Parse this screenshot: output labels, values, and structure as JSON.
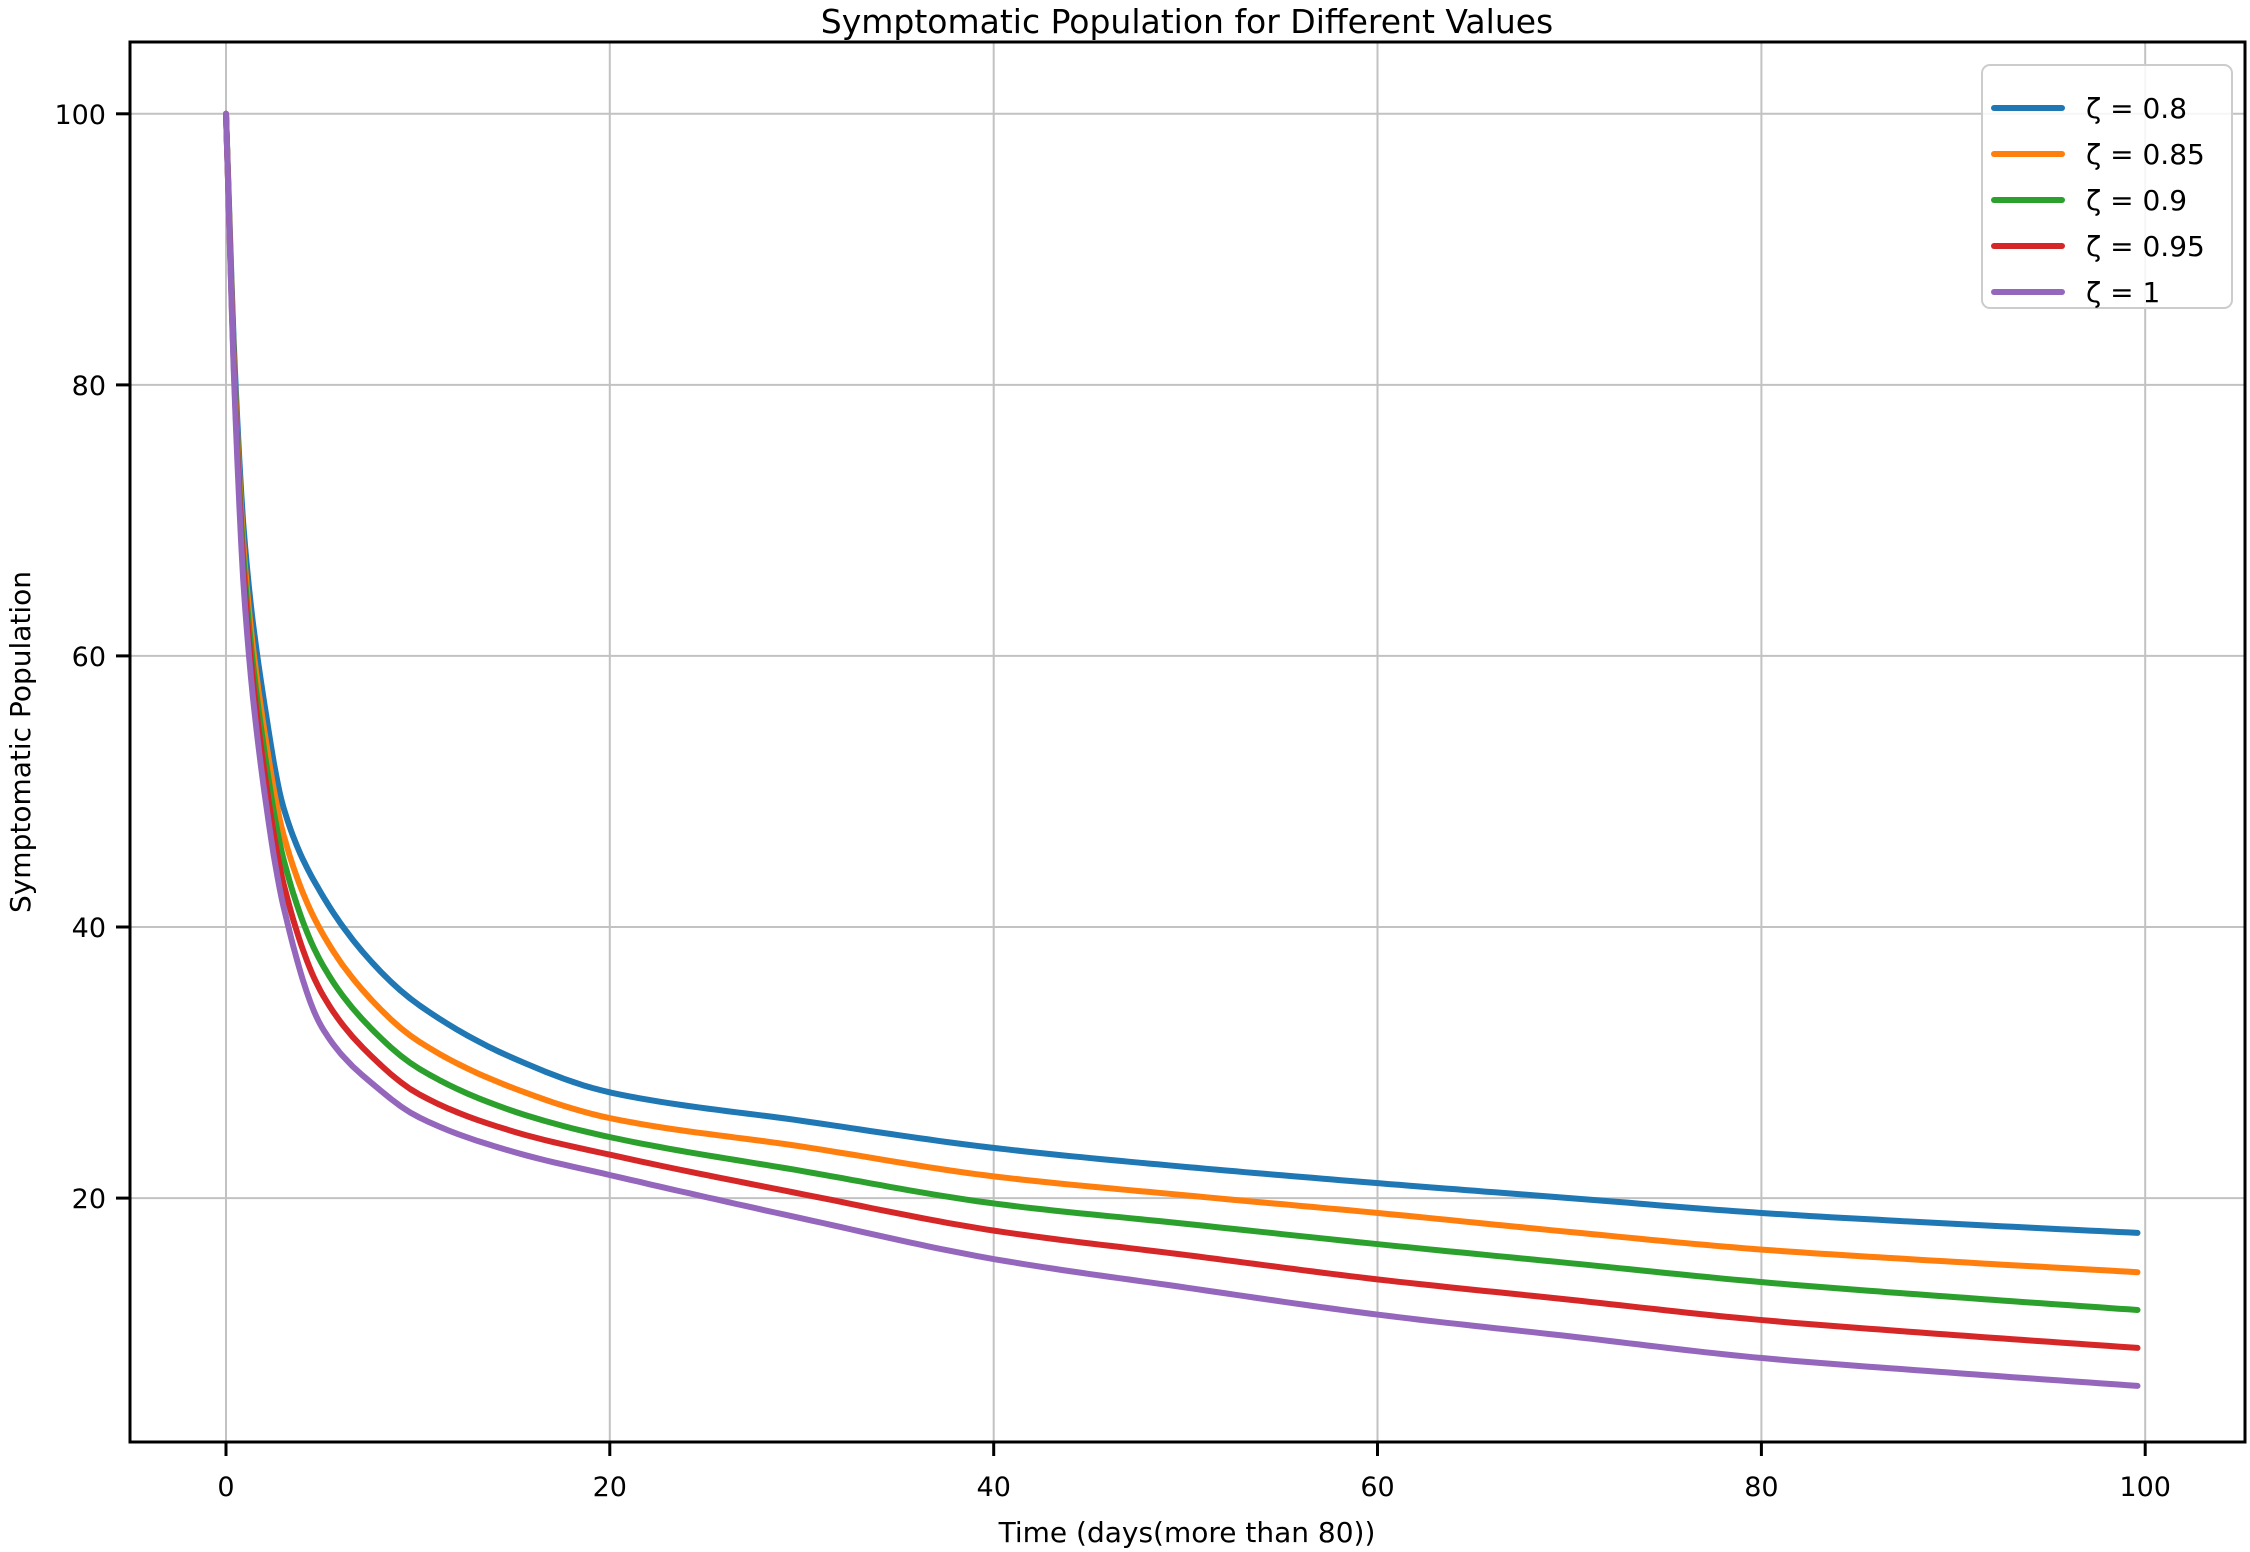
{
  "figure": {
    "background": "#ffffff",
    "grid_color": "#c2c2c2",
    "spine_color": "#000000",
    "legend_border_color": "#cccccc",
    "legend_background": "rgba(255,255,255,0.85)"
  },
  "chart_data": {
    "type": "line",
    "title": "Symptomatic Population for Different Values",
    "xlabel": "Time (days(more than 80))",
    "ylabel": "Symptomatic Population",
    "xlim": [
      -5,
      105.2
    ],
    "ylim": [
      2.0,
      105.3
    ],
    "xticks": [
      0,
      20,
      40,
      60,
      80,
      100
    ],
    "yticks": [
      20,
      40,
      60,
      80,
      100
    ],
    "grid": true,
    "legend_position": "upper right",
    "x": [
      0,
      0.5,
      1,
      2,
      3,
      5,
      8,
      10,
      15,
      20,
      30,
      40,
      50,
      60,
      70,
      80,
      90,
      100
    ],
    "series": [
      {
        "name": "ζ = 0.8",
        "color": "#1f77b4",
        "values": [
          100,
          80.0,
          68.0,
          56.5,
          48.8,
          42.4,
          36.8,
          34.3,
          30.3,
          27.8,
          25.7,
          23.7,
          22.3,
          21.1,
          20.0,
          18.9,
          18.1,
          17.4
        ]
      },
      {
        "name": "ζ = 0.85",
        "color": "#ff7f0e",
        "values": [
          100,
          79.0,
          66.5,
          54.5,
          46.8,
          39.6,
          34.0,
          31.6,
          28.1,
          25.9,
          23.8,
          21.6,
          20.2,
          18.9,
          17.5,
          16.2,
          15.3,
          14.5
        ]
      },
      {
        "name": "ζ = 0.9",
        "color": "#2ca02c",
        "values": [
          100,
          78.5,
          65.5,
          53.0,
          45.0,
          37.3,
          31.9,
          29.6,
          26.4,
          24.5,
          22.0,
          19.6,
          18.1,
          16.6,
          15.2,
          13.8,
          12.7,
          11.7
        ]
      },
      {
        "name": "ζ = 0.95",
        "color": "#d62728",
        "values": [
          100,
          78.0,
          64.5,
          51.5,
          43.2,
          35.1,
          29.9,
          27.7,
          24.9,
          23.2,
          20.3,
          17.6,
          15.8,
          14.0,
          12.5,
          11.0,
          9.9,
          8.9
        ]
      },
      {
        "name": "ζ = 1",
        "color": "#9467bd",
        "values": [
          100,
          77.5,
          63.5,
          50.0,
          41.5,
          32.6,
          28.0,
          26.0,
          23.4,
          21.7,
          18.5,
          15.5,
          13.4,
          11.4,
          9.8,
          8.2,
          7.1,
          6.1
        ]
      }
    ]
  }
}
